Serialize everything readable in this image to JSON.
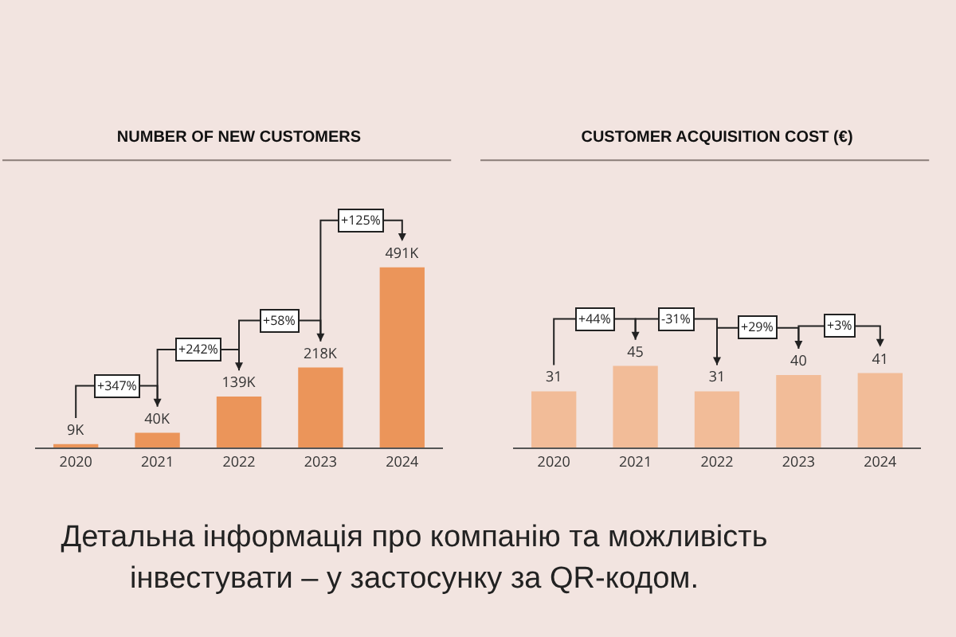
{
  "chart_data": [
    {
      "type": "bar",
      "title": "NUMBER OF NEW CUSTOMERS",
      "categories": [
        "2020",
        "2021",
        "2022",
        "2023",
        "2024"
      ],
      "values": [
        9,
        40,
        139,
        218,
        491
      ],
      "value_labels": [
        "9K",
        "40K",
        "139K",
        "218K",
        "491K"
      ],
      "color": "#eb955a",
      "annotations": [
        "+347%",
        "+242%",
        "+58%",
        "+125%"
      ]
    },
    {
      "type": "bar",
      "title": "CUSTOMER ACQUISITION COST (€)",
      "categories": [
        "2020",
        "2021",
        "2022",
        "2023",
        "2024"
      ],
      "values": [
        31,
        45,
        31,
        40,
        41
      ],
      "data_labels": true,
      "color": "#f2bc98",
      "annotations": [
        "+44%",
        "-31%",
        "+29%",
        "+3%",
        "Детальна інформація про компанію та можливість інвестувати – у застосунку за QR-кодом."
      ]
    }
  ]
}
